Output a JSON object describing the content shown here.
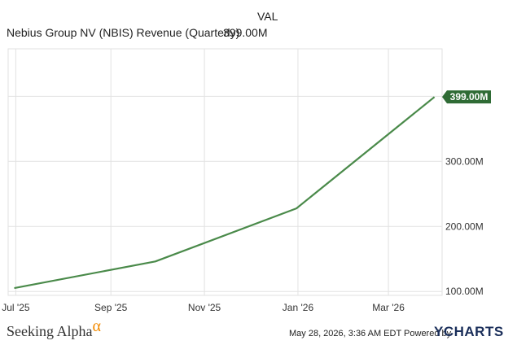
{
  "legend": {
    "header": "VAL",
    "series_name": "Nebius Group NV (NBIS) Revenue (Quarterly)",
    "series_value": "399.00M"
  },
  "footer": {
    "brand": "Seeking Alpha",
    "timestamp": "May 28, 2026, 3:36 AM EDT Powered by",
    "provider": "YCHARTS"
  },
  "colors": {
    "line": "#4a8a4a",
    "badge": "#2f6b35",
    "grid": "#e2e2e2"
  },
  "chart_data": {
    "type": "line",
    "series": [
      {
        "name": "Nebius Group NV (NBIS) Revenue (Quarterly)",
        "points": [
          {
            "x": "2025-06-30",
            "y": 105.1
          },
          {
            "x": "2025-09-30",
            "y": 146.1
          },
          {
            "x": "2025-12-31",
            "y": 227.7
          },
          {
            "x": "2026-03-31",
            "y": 399.0
          }
        ]
      }
    ],
    "x_ticks": [
      {
        "label": "Jul '25",
        "date": "2025-07-01"
      },
      {
        "label": "Sep '25",
        "date": "2025-09-01"
      },
      {
        "label": "Nov '25",
        "date": "2025-11-01"
      },
      {
        "label": "Jan '26",
        "date": "2026-01-01"
      },
      {
        "label": "Mar '26",
        "date": "2026-03-01"
      }
    ],
    "y_ticks": [
      {
        "label": "100.00M",
        "value": 100
      },
      {
        "label": "200.00M",
        "value": 200
      },
      {
        "label": "300.00M",
        "value": 300
      }
    ],
    "last_value_label": "399.00M",
    "y_range": [
      94,
      473
    ],
    "x_range": [
      "2025-06-26",
      "2026-04-05"
    ],
    "grid": true,
    "y_axis_side": "right"
  }
}
